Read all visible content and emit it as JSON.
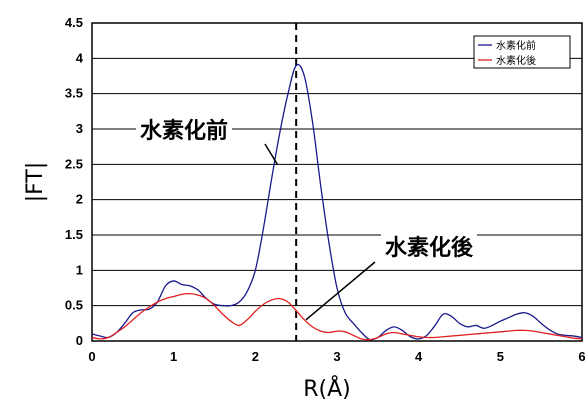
{
  "chart_data": {
    "type": "line",
    "title": "",
    "xlabel": "R(Å)",
    "ylabel": "|FT|",
    "xlim": [
      0,
      6
    ],
    "ylim": [
      0,
      4.5
    ],
    "x_ticks": [
      "0",
      "1",
      "2",
      "3",
      "4",
      "5",
      "6"
    ],
    "y_ticks": [
      "0",
      "0.5",
      "1",
      "1.5",
      "2",
      "2.5",
      "3",
      "3.5",
      "4",
      "4.5"
    ],
    "grid": "horizontal",
    "legend_position": "top-right",
    "reference_line_x": 2.5,
    "series": [
      {
        "name": "水素化前",
        "color": "#1a1a8c",
        "x": [
          0,
          0.1,
          0.2,
          0.3,
          0.4,
          0.5,
          0.6,
          0.7,
          0.8,
          0.9,
          1.0,
          1.1,
          1.2,
          1.3,
          1.4,
          1.5,
          1.6,
          1.7,
          1.8,
          1.9,
          2.0,
          2.1,
          2.2,
          2.3,
          2.4,
          2.5,
          2.6,
          2.7,
          2.8,
          2.9,
          3.0,
          3.1,
          3.2,
          3.3,
          3.4,
          3.5,
          3.6,
          3.7,
          3.8,
          3.9,
          4.0,
          4.1,
          4.2,
          4.3,
          4.4,
          4.5,
          4.6,
          4.7,
          4.8,
          4.9,
          5.0,
          5.1,
          5.2,
          5.3,
          5.4,
          5.5,
          5.6,
          5.7,
          5.8,
          5.9,
          6.0
        ],
        "y": [
          0.1,
          0.07,
          0.05,
          0.12,
          0.25,
          0.4,
          0.44,
          0.45,
          0.55,
          0.78,
          0.85,
          0.8,
          0.78,
          0.72,
          0.6,
          0.52,
          0.5,
          0.5,
          0.55,
          0.7,
          1.0,
          1.6,
          2.3,
          2.95,
          3.5,
          3.9,
          3.75,
          3.1,
          2.2,
          1.4,
          0.75,
          0.4,
          0.25,
          0.12,
          0.02,
          0.05,
          0.15,
          0.2,
          0.15,
          0.06,
          0.03,
          0.08,
          0.22,
          0.38,
          0.35,
          0.25,
          0.2,
          0.22,
          0.18,
          0.22,
          0.28,
          0.33,
          0.38,
          0.4,
          0.35,
          0.25,
          0.16,
          0.1,
          0.08,
          0.07,
          0.05
        ]
      },
      {
        "name": "水素化後",
        "color": "#e02020",
        "x": [
          0,
          0.1,
          0.2,
          0.3,
          0.4,
          0.5,
          0.6,
          0.7,
          0.8,
          0.9,
          1.0,
          1.1,
          1.2,
          1.3,
          1.4,
          1.5,
          1.6,
          1.7,
          1.8,
          1.9,
          2.0,
          2.1,
          2.2,
          2.3,
          2.4,
          2.5,
          2.6,
          2.7,
          2.8,
          2.9,
          3.0,
          3.1,
          3.2,
          3.3,
          3.4,
          3.5,
          3.6,
          3.7,
          3.8,
          3.9,
          4.0,
          4.1,
          4.2,
          4.3,
          4.4,
          4.5,
          4.6,
          4.7,
          4.8,
          4.9,
          5.0,
          5.1,
          5.2,
          5.3,
          5.4,
          5.5,
          5.6,
          5.7,
          5.8,
          5.9,
          6.0
        ],
        "y": [
          0.05,
          0.03,
          0.05,
          0.12,
          0.2,
          0.3,
          0.4,
          0.48,
          0.55,
          0.6,
          0.63,
          0.66,
          0.67,
          0.65,
          0.6,
          0.5,
          0.38,
          0.28,
          0.22,
          0.3,
          0.42,
          0.52,
          0.58,
          0.6,
          0.55,
          0.43,
          0.3,
          0.2,
          0.14,
          0.12,
          0.14,
          0.13,
          0.08,
          0.03,
          0.02,
          0.05,
          0.1,
          0.12,
          0.1,
          0.08,
          0.06,
          0.05,
          0.05,
          0.06,
          0.07,
          0.08,
          0.09,
          0.1,
          0.11,
          0.12,
          0.13,
          0.14,
          0.15,
          0.15,
          0.14,
          0.12,
          0.1,
          0.08,
          0.06,
          0.04,
          0.03
        ]
      }
    ],
    "annotations": [
      {
        "text": "水素化前",
        "series_index": 0
      },
      {
        "text": "水素化後",
        "series_index": 1
      }
    ]
  }
}
